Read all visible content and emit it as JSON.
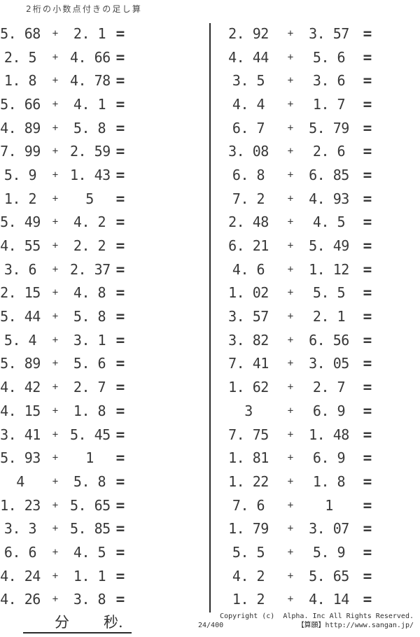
{
  "title": "2桁の小数点付きの足し算",
  "symbols": {
    "plus": "+",
    "equals": "="
  },
  "problems_left": [
    {
      "a": "5. 68",
      "b": "2. 1"
    },
    {
      "a": "2. 5",
      "b": "4. 66"
    },
    {
      "a": "1. 8",
      "b": "4. 78"
    },
    {
      "a": "5. 66",
      "b": "4. 1"
    },
    {
      "a": "4. 89",
      "b": "5. 8"
    },
    {
      "a": "7. 99",
      "b": "2. 59"
    },
    {
      "a": "5. 9",
      "b": "1. 43"
    },
    {
      "a": "1. 2",
      "b": "5"
    },
    {
      "a": "5. 49",
      "b": "4. 2"
    },
    {
      "a": "4. 55",
      "b": "2. 2"
    },
    {
      "a": "3. 6",
      "b": "2. 37"
    },
    {
      "a": "2. 15",
      "b": "4. 8"
    },
    {
      "a": "5. 44",
      "b": "5. 8"
    },
    {
      "a": "5. 4",
      "b": "3. 1"
    },
    {
      "a": "5. 89",
      "b": "5. 6"
    },
    {
      "a": "4. 42",
      "b": "2. 7"
    },
    {
      "a": "4. 15",
      "b": "1. 8"
    },
    {
      "a": "3. 41",
      "b": "5. 45"
    },
    {
      "a": "5. 93",
      "b": "1"
    },
    {
      "a": "4",
      "b": "5. 8"
    },
    {
      "a": "1. 23",
      "b": "5. 65"
    },
    {
      "a": "3. 3",
      "b": "5. 85"
    },
    {
      "a": "6. 6",
      "b": "4. 5"
    },
    {
      "a": "4. 24",
      "b": "1. 1"
    },
    {
      "a": "4. 26",
      "b": "3. 8"
    }
  ],
  "problems_right": [
    {
      "a": "2. 92",
      "b": "3. 57"
    },
    {
      "a": "4. 44",
      "b": "5. 6"
    },
    {
      "a": "3. 5",
      "b": "3. 6"
    },
    {
      "a": "4. 4",
      "b": "1. 7"
    },
    {
      "a": "6. 7",
      "b": "5. 79"
    },
    {
      "a": "3. 08",
      "b": "2. 6"
    },
    {
      "a": "6. 8",
      "b": "6. 85"
    },
    {
      "a": "7. 2",
      "b": "4. 93"
    },
    {
      "a": "2. 48",
      "b": "4. 5"
    },
    {
      "a": "6. 21",
      "b": "5. 49"
    },
    {
      "a": "4. 6",
      "b": "1. 12"
    },
    {
      "a": "1. 02",
      "b": "5. 5"
    },
    {
      "a": "3. 57",
      "b": "2. 1"
    },
    {
      "a": "3. 82",
      "b": "6. 56"
    },
    {
      "a": "7. 41",
      "b": "3. 05"
    },
    {
      "a": "1. 62",
      "b": "2. 7"
    },
    {
      "a": "3",
      "b": "6. 9"
    },
    {
      "a": "7. 75",
      "b": "1. 48"
    },
    {
      "a": "1. 81",
      "b": "6. 9"
    },
    {
      "a": "1. 22",
      "b": "1. 8"
    },
    {
      "a": "7. 6",
      "b": "1"
    },
    {
      "a": "1. 79",
      "b": "3. 07"
    },
    {
      "a": "5. 5",
      "b": "5. 9"
    },
    {
      "a": "4. 2",
      "b": "5. 65"
    },
    {
      "a": "1. 2",
      "b": "4. 14"
    }
  ],
  "footer": {
    "minutes_label": "分",
    "seconds_label": "秒.",
    "copyright": "Copyright (c)  Alpha. Inc All Rights Reserved.",
    "page_number": "24/400",
    "site": "【算願】http://www.sangan.jp/"
  },
  "colors": {
    "ink": "#383838",
    "divider": "#2a2a2a",
    "background": "#ffffff"
  }
}
